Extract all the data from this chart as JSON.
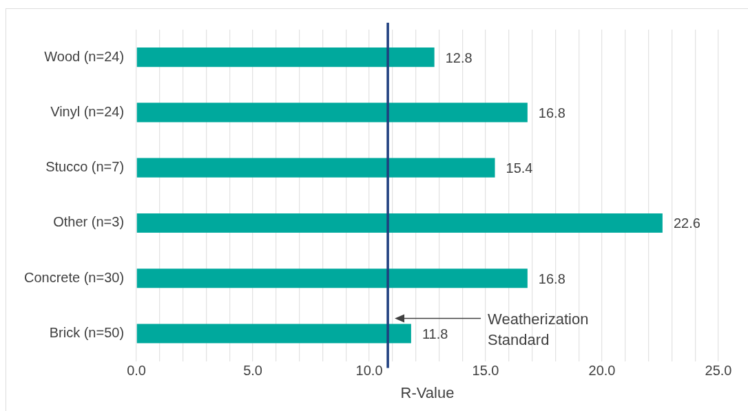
{
  "chart_data": {
    "type": "bar",
    "orientation": "horizontal",
    "xlabel": "R-Value",
    "categories": [
      "Wood (n=24)",
      "Vinyl (n=24)",
      "Stucco (n=7)",
      "Other (n=3)",
      "Concrete (n=30)",
      "Brick (n=50)"
    ],
    "values": [
      12.8,
      16.8,
      15.4,
      22.6,
      16.8,
      11.8
    ],
    "color": "#00a99d",
    "data_labels": true,
    "xlim": [
      0,
      25
    ],
    "xticks": [
      {
        "value": 0,
        "label": "0.0"
      },
      {
        "value": 1,
        "label": null
      },
      {
        "value": 2,
        "label": null
      },
      {
        "value": 3,
        "label": null
      },
      {
        "value": 4,
        "label": null
      },
      {
        "value": 5,
        "label": "5.0"
      },
      {
        "value": 6,
        "label": null
      },
      {
        "value": 7,
        "label": null
      },
      {
        "value": 8,
        "label": null
      },
      {
        "value": 9,
        "label": null
      },
      {
        "value": 10,
        "label": "10.0"
      },
      {
        "value": 11,
        "label": null
      },
      {
        "value": 12,
        "label": null
      },
      {
        "value": 13,
        "label": null
      },
      {
        "value": 14,
        "label": null
      },
      {
        "value": 15,
        "label": "15.0"
      },
      {
        "value": 16,
        "label": null
      },
      {
        "value": 17,
        "label": null
      },
      {
        "value": 18,
        "label": null
      },
      {
        "value": 19,
        "label": null
      },
      {
        "value": 20,
        "label": "20.0"
      },
      {
        "value": 21,
        "label": null
      },
      {
        "value": 22,
        "label": null
      },
      {
        "value": 23,
        "label": null
      },
      {
        "value": 24,
        "label": null
      },
      {
        "value": 25,
        "label": "25.0"
      }
    ],
    "grid": "x",
    "legend": false,
    "ref_lines": [
      {
        "axis": "x",
        "value": 10.8,
        "color": "#1f3f7f"
      }
    ],
    "annotations": [
      "Weatherization Standard"
    ]
  }
}
